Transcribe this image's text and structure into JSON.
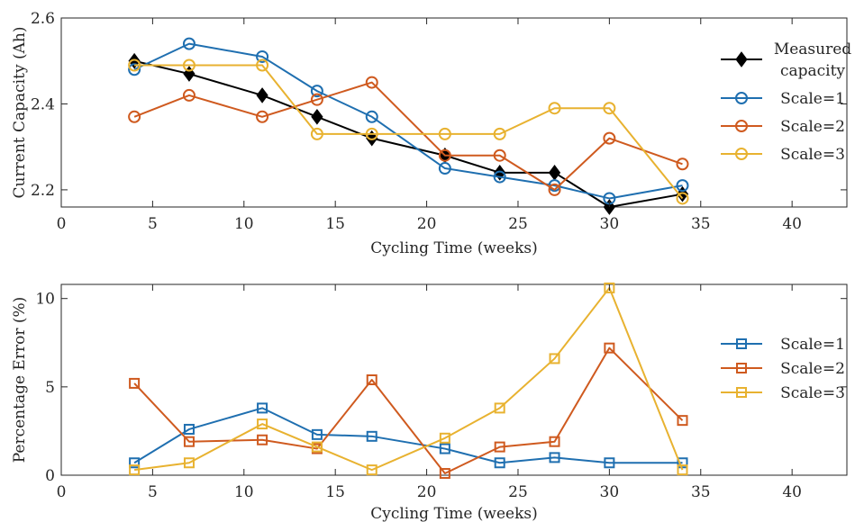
{
  "colors": {
    "measured": "#000000",
    "scale1": "#1f6fb0",
    "scale2": "#cf5a1f",
    "scale3": "#e8b230"
  },
  "chart_data": [
    {
      "type": "line",
      "xlabel": "Cycling Time (weeks)",
      "ylabel": "Current Capacity (Ah)",
      "xlim": [
        0,
        43
      ],
      "ylim": [
        2.16,
        2.6
      ],
      "xticks": [
        0,
        5,
        10,
        15,
        20,
        25,
        30,
        35,
        40
      ],
      "yticks": [
        2.2,
        2.4,
        2.6
      ],
      "xtick_labels": [
        "0",
        "5",
        "10",
        "15",
        "20",
        "25",
        "30",
        "35",
        "40"
      ],
      "ytick_labels": [
        "2.2",
        "2.4",
        "2.6"
      ],
      "grid": false,
      "legend_position": "upper-right",
      "x": [
        4,
        7,
        11,
        14,
        17,
        21,
        24,
        27,
        30,
        34
      ],
      "series": [
        {
          "name": "Measured capacity",
          "legend_lines": [
            "Measured",
            "capacity"
          ],
          "color": "#000000",
          "marker": "diamond",
          "values": [
            2.5,
            2.47,
            2.42,
            2.37,
            2.32,
            2.28,
            2.24,
            2.24,
            2.16,
            2.19
          ]
        },
        {
          "name": "Scale=1",
          "legend_lines": [
            "Scale=1"
          ],
          "color": "#1f6fb0",
          "marker": "circle",
          "values": [
            2.48,
            2.54,
            2.51,
            2.43,
            2.37,
            2.25,
            2.23,
            2.21,
            2.18,
            2.21
          ]
        },
        {
          "name": "Scale=2",
          "legend_lines": [
            "Scale=2"
          ],
          "color": "#cf5a1f",
          "marker": "circle",
          "values": [
            2.37,
            2.42,
            2.37,
            2.41,
            2.45,
            2.28,
            2.28,
            2.2,
            2.32,
            2.26
          ]
        },
        {
          "name": "Scale=3",
          "legend_lines": [
            "Scale=3"
          ],
          "color": "#e8b230",
          "marker": "circle",
          "values": [
            2.49,
            2.49,
            2.49,
            2.33,
            2.33,
            2.33,
            2.33,
            2.39,
            2.39,
            2.18
          ]
        }
      ]
    },
    {
      "type": "line",
      "xlabel": "Cycling Time (weeks)",
      "ylabel": "Percentage Error (%)",
      "xlim": [
        0,
        43
      ],
      "ylim": [
        0,
        10.8
      ],
      "xticks": [
        0,
        5,
        10,
        15,
        20,
        25,
        30,
        35,
        40
      ],
      "yticks": [
        0,
        5,
        10
      ],
      "xtick_labels": [
        "0",
        "5",
        "10",
        "15",
        "20",
        "25",
        "30",
        "35",
        "40"
      ],
      "ytick_labels": [
        "0",
        "5",
        "10"
      ],
      "grid": false,
      "legend_position": "right",
      "x": [
        4,
        7,
        11,
        14,
        17,
        21,
        24,
        27,
        30,
        34
      ],
      "series": [
        {
          "name": "Scale=1",
          "legend_lines": [
            "Scale=1"
          ],
          "color": "#1f6fb0",
          "marker": "square",
          "values": [
            0.7,
            2.6,
            3.8,
            2.3,
            2.2,
            1.5,
            0.7,
            1.0,
            0.7,
            0.7
          ]
        },
        {
          "name": "Scale=2",
          "legend_lines": [
            "Scale=2"
          ],
          "color": "#cf5a1f",
          "marker": "square",
          "values": [
            5.2,
            1.9,
            2.0,
            1.5,
            5.4,
            0.1,
            1.6,
            1.9,
            7.2,
            3.1
          ]
        },
        {
          "name": "Scale=3",
          "legend_lines": [
            "Scale=3"
          ],
          "color": "#e8b230",
          "marker": "square",
          "values": [
            0.3,
            0.7,
            2.9,
            1.6,
            0.3,
            2.1,
            3.8,
            6.6,
            10.6,
            0.3
          ]
        }
      ]
    }
  ]
}
